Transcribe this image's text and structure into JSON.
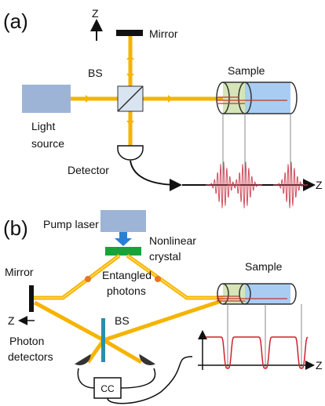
{
  "panel_a": {
    "label": "(a)",
    "z_axis_up": "Z",
    "mirror": "Mirror",
    "beam_splitter": "BS",
    "sample": "Sample",
    "light_source": [
      "Light",
      "source"
    ],
    "detector": "Detector",
    "z_axis": "Z"
  },
  "panel_b": {
    "label": "(b)",
    "pump_laser": "Pump laser",
    "nonlinear_crystal": [
      "Nonlinear",
      "crystal"
    ],
    "sample": "Sample",
    "mirror": "Mirror",
    "z_axis_left": "Z",
    "entangled_photons": [
      "Entangled",
      "photons"
    ],
    "beam_splitter": "BS",
    "photon_detectors": [
      "Photon",
      "detectors"
    ],
    "coincidence_counter": "CC",
    "z_axis": "Z"
  }
}
